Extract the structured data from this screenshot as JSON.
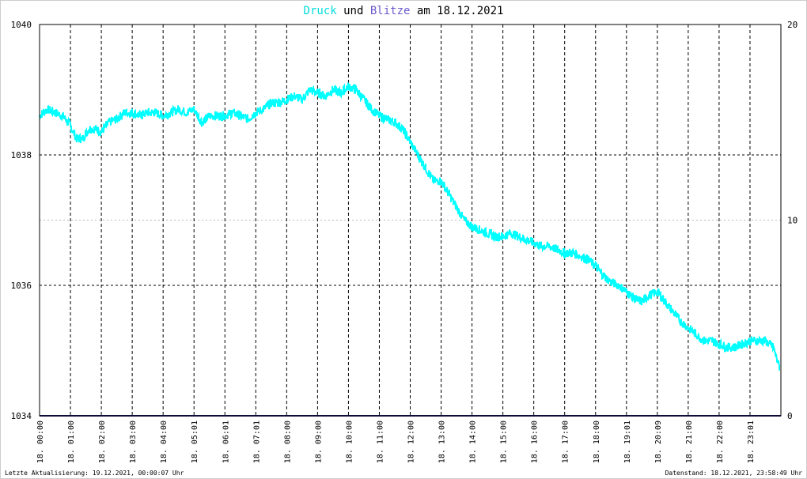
{
  "header": {
    "title_part1": "Druck",
    "title_part2": " und ",
    "title_part3": "Blitze",
    "title_part4": " am 18.12.2021"
  },
  "footer": {
    "left": "Letzte Aktualisierung: 19.12.2021, 00:00:07 Uhr",
    "right": "Datenstand: 18.12.2021, 23:58:49 Uhr"
  },
  "colors": {
    "pressure": "#00ffff",
    "lightning": "#6a5acd",
    "title_druck": "#00dddd",
    "title_blitze": "#6a5acd",
    "grid": "#000000",
    "minor_grid": "#bbbbbb",
    "zero_line": "#1a1a6e"
  },
  "chart_data": {
    "type": "line",
    "title": "Druck und Blitze am 18.12.2021",
    "y_left": {
      "min": 1034,
      "max": 1040,
      "ticks": [
        "1034",
        "1036",
        "1038",
        "1040"
      ]
    },
    "y_right": {
      "min": 0,
      "max": 20,
      "ticks": [
        "0",
        "10",
        "20"
      ]
    },
    "x_range": [
      0,
      24
    ],
    "x_ticks": [
      {
        "h": 0.0,
        "label": "18. 00:00"
      },
      {
        "h": 1.0,
        "label": "18. 01:00"
      },
      {
        "h": 2.0,
        "label": "18. 02:00"
      },
      {
        "h": 3.0,
        "label": "18. 03:00"
      },
      {
        "h": 4.0,
        "label": "18. 04:00"
      },
      {
        "h": 5.0,
        "label": "18. 05:01"
      },
      {
        "h": 6.0,
        "label": "18. 06:01"
      },
      {
        "h": 7.0,
        "label": "18. 07:01"
      },
      {
        "h": 8.0,
        "label": "18. 08:00"
      },
      {
        "h": 9.0,
        "label": "18. 09:00"
      },
      {
        "h": 10.0,
        "label": "18. 10:00"
      },
      {
        "h": 11.0,
        "label": "18. 11:00"
      },
      {
        "h": 12.0,
        "label": "18. 12:00"
      },
      {
        "h": 13.0,
        "label": "18. 13:00"
      },
      {
        "h": 14.0,
        "label": "18. 14:00"
      },
      {
        "h": 15.0,
        "label": "18. 15:00"
      },
      {
        "h": 16.0,
        "label": "18. 16:00"
      },
      {
        "h": 17.0,
        "label": "18. 17:00"
      },
      {
        "h": 18.0,
        "label": "18. 18:00"
      },
      {
        "h": 19.0,
        "label": "18. 19:01"
      },
      {
        "h": 20.0,
        "label": "18. 20:09"
      },
      {
        "h": 21.0,
        "label": "18. 21:00"
      },
      {
        "h": 22.0,
        "label": "18. 22:00"
      },
      {
        "h": 23.0,
        "label": "18. 23:01"
      }
    ],
    "series": [
      {
        "name": "Druck",
        "axis": "left",
        "x": [
          0.0,
          0.25,
          0.5,
          0.75,
          1.0,
          1.2,
          1.4,
          1.6,
          1.8,
          2.0,
          2.25,
          2.5,
          2.75,
          3.0,
          3.25,
          3.5,
          3.75,
          4.0,
          4.25,
          4.5,
          4.75,
          5.0,
          5.25,
          5.5,
          5.75,
          6.0,
          6.25,
          6.5,
          6.75,
          7.0,
          7.25,
          7.5,
          7.75,
          8.0,
          8.25,
          8.5,
          8.75,
          9.0,
          9.25,
          9.5,
          9.75,
          10.0,
          10.25,
          10.5,
          10.75,
          11.0,
          11.25,
          11.5,
          11.75,
          12.0,
          12.25,
          12.5,
          12.75,
          13.0,
          13.25,
          13.5,
          13.75,
          14.0,
          14.25,
          14.5,
          14.75,
          15.0,
          15.25,
          15.5,
          15.75,
          16.0,
          16.25,
          16.5,
          16.75,
          17.0,
          17.25,
          17.5,
          17.75,
          18.0,
          18.25,
          18.5,
          18.75,
          19.0,
          19.25,
          19.5,
          19.75,
          20.0,
          20.25,
          20.5,
          20.75,
          21.0,
          21.25,
          21.5,
          21.75,
          22.0,
          22.25,
          22.5,
          22.75,
          23.0,
          23.25,
          23.5,
          23.75,
          23.95
        ],
        "values": [
          1038.6,
          1038.7,
          1038.65,
          1038.6,
          1038.45,
          1038.25,
          1038.25,
          1038.4,
          1038.4,
          1038.35,
          1038.5,
          1038.55,
          1038.65,
          1038.65,
          1038.6,
          1038.65,
          1038.65,
          1038.6,
          1038.65,
          1038.7,
          1038.65,
          1038.7,
          1038.5,
          1038.6,
          1038.6,
          1038.6,
          1038.65,
          1038.6,
          1038.55,
          1038.65,
          1038.7,
          1038.8,
          1038.8,
          1038.85,
          1038.9,
          1038.85,
          1039.0,
          1038.95,
          1038.9,
          1039.0,
          1038.95,
          1039.05,
          1039.0,
          1038.85,
          1038.7,
          1038.6,
          1038.55,
          1038.5,
          1038.4,
          1038.2,
          1038.0,
          1037.8,
          1037.6,
          1037.6,
          1037.4,
          1037.2,
          1037.0,
          1036.9,
          1036.85,
          1036.8,
          1036.75,
          1036.75,
          1036.8,
          1036.75,
          1036.7,
          1036.65,
          1036.6,
          1036.6,
          1036.55,
          1036.5,
          1036.5,
          1036.45,
          1036.4,
          1036.3,
          1036.15,
          1036.05,
          1036.0,
          1035.9,
          1035.8,
          1035.75,
          1035.85,
          1035.9,
          1035.75,
          1035.6,
          1035.45,
          1035.35,
          1035.25,
          1035.15,
          1035.15,
          1035.1,
          1035.05,
          1035.05,
          1035.1,
          1035.15,
          1035.15,
          1035.15,
          1035.05,
          1034.75
        ],
        "jitter": 0.07
      },
      {
        "name": "Blitze",
        "axis": "right",
        "x": [
          0,
          24
        ],
        "values": [
          0,
          0
        ]
      }
    ]
  }
}
